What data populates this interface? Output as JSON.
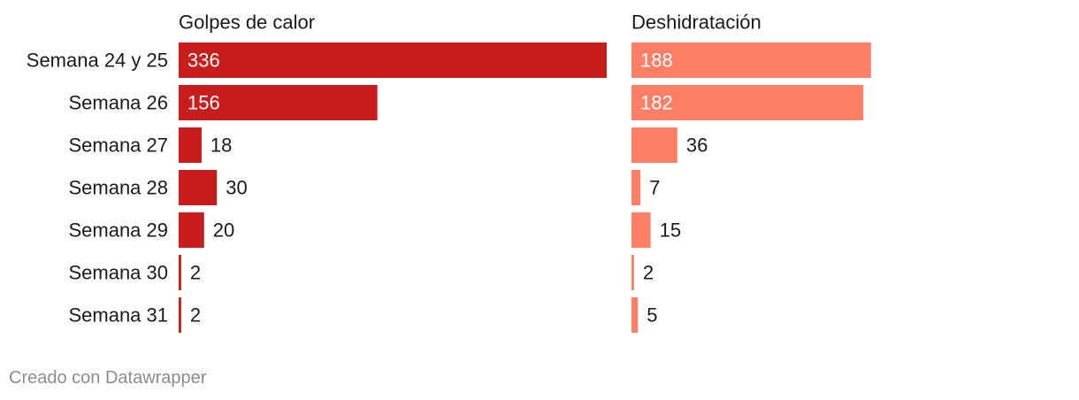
{
  "chart_data": {
    "type": "bar",
    "orientation": "horizontal",
    "categories": [
      "Semana 24 y 25",
      "Semana 26",
      "Semana 27",
      "Semana 28",
      "Semana 29",
      "Semana 30",
      "Semana 31"
    ],
    "series": [
      {
        "name": "Golpes de calor",
        "values": [
          336,
          156,
          18,
          30,
          20,
          2,
          2
        ],
        "color": "#c71e1d"
      },
      {
        "name": "Deshidratación",
        "values": [
          188,
          182,
          36,
          7,
          15,
          2,
          5
        ],
        "color": "#ff7f66"
      }
    ],
    "xlim": [
      0,
      336
    ],
    "grid": false,
    "legend": "none"
  },
  "footer": {
    "credit": "Creado con Datawrapper"
  }
}
